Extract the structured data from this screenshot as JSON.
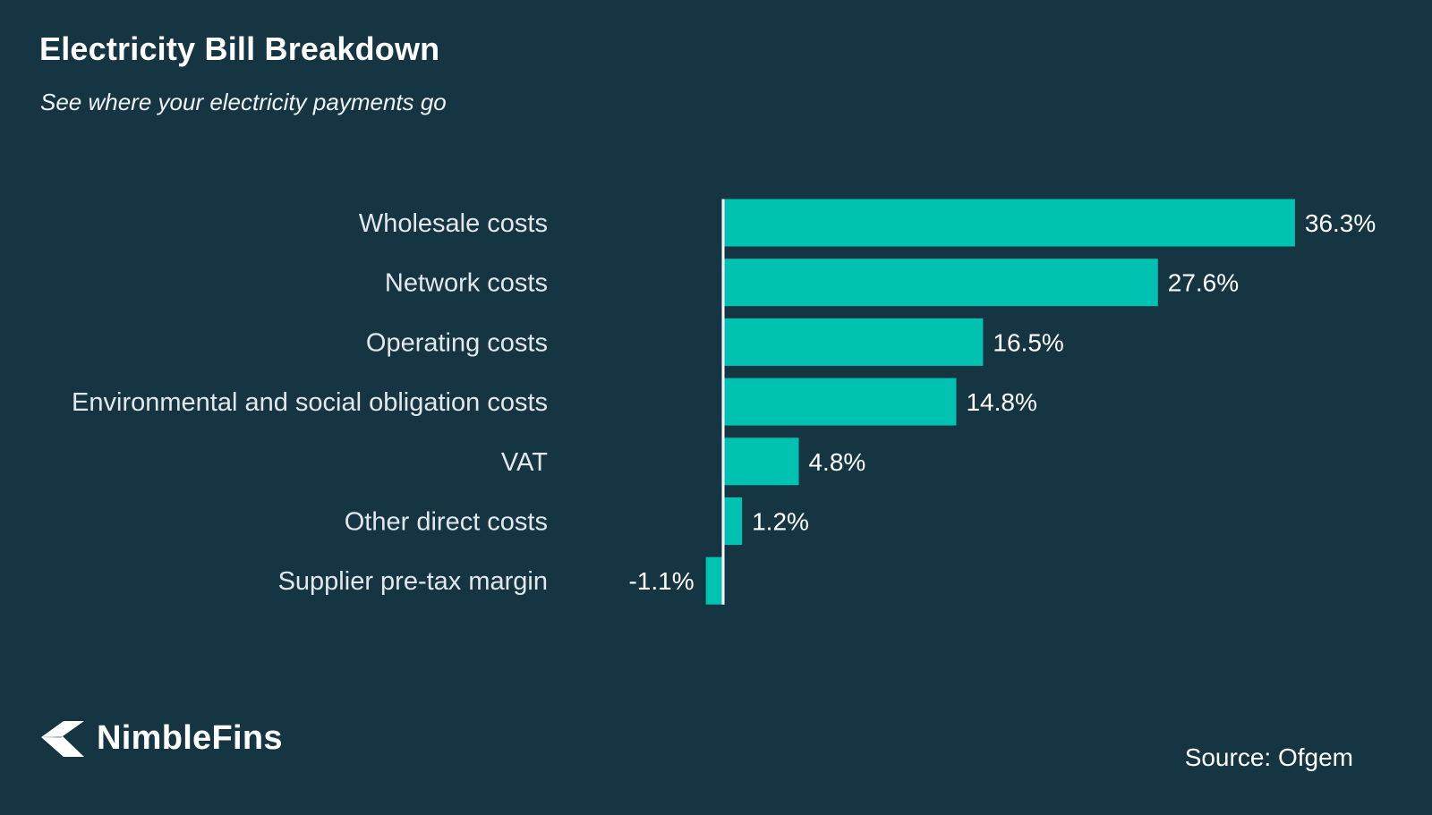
{
  "chart_data": {
    "type": "bar",
    "orientation": "horizontal",
    "title": "Electricity Bill Breakdown",
    "subtitle": "See where your electricity payments go",
    "categories": [
      "Wholesale costs",
      "Network costs",
      "Operating costs",
      "Environmental and social obligation costs",
      "VAT",
      "Other direct costs",
      "Supplier pre-tax margin"
    ],
    "values": [
      36.3,
      27.6,
      16.5,
      14.8,
      4.8,
      1.2,
      -1.1
    ],
    "value_labels": [
      "36.3%",
      "27.6%",
      "16.5%",
      "14.8%",
      "4.8%",
      "1.2%",
      "-1.1%"
    ],
    "unit": "%",
    "xlim": [
      -1.1,
      36.3
    ],
    "bar_color": "#00c2b0",
    "grid": false,
    "legend": "none"
  },
  "colors": {
    "background": "#163543",
    "bar": "#00c2b0",
    "axis": "#ffffff"
  },
  "branding": {
    "logo_icon": "arrow-chevron-icon",
    "logo_text": "NimbleFins"
  },
  "footer": {
    "source": "Source: Ofgem"
  }
}
